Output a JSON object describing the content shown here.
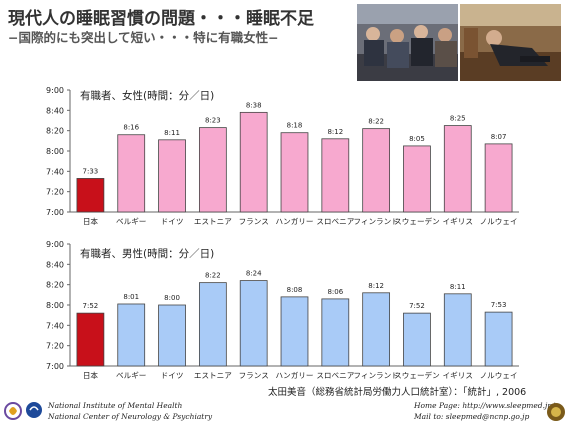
{
  "header": {
    "title": "現代人の睡眠習慣の問題・・・睡眠不足",
    "subtitle": "−国際的にも突出して短い・・・特に有職女性−"
  },
  "photos": [
    {
      "icon": "photo-sleeping-commuters-icon"
    },
    {
      "icon": "photo-sleeping-passenger-icon"
    }
  ],
  "chart_data": [
    {
      "type": "bar",
      "label": "有職者、女性(時間：分／日)",
      "categories": [
        "日本",
        "ベルギー",
        "ドイツ",
        "エストニア",
        "フランス",
        "ハンガリー",
        "スロベニア",
        "フィンランド",
        "スウェーデン",
        "イギリス",
        "ノルウェイ"
      ],
      "value_labels": [
        "7:33",
        "8:16",
        "8:11",
        "8:23",
        "8:38",
        "8:18",
        "8:12",
        "8:22",
        "8:05",
        "8:25",
        "8:07"
      ],
      "values_minutes": [
        453,
        496,
        491,
        503,
        518,
        498,
        492,
        502,
        485,
        505,
        487
      ],
      "y_ticks": [
        "9:00",
        "8:40",
        "8:20",
        "8:00",
        "7:40",
        "7:20",
        "7:00"
      ],
      "ylim_minutes": [
        420,
        540
      ],
      "highlight_color": "#c8101a",
      "bar_color": "#f7a9cf",
      "grid": false
    },
    {
      "type": "bar",
      "label": "有職者、男性(時間：分／日)",
      "categories": [
        "日本",
        "ベルギー",
        "ドイツ",
        "エストニア",
        "フランス",
        "ハンガリー",
        "スロベニア",
        "フィンランド",
        "スウェーデン",
        "イギリス",
        "ノルウェイ"
      ],
      "value_labels": [
        "7:52",
        "8:01",
        "8:00",
        "8:22",
        "8:24",
        "8:08",
        "8:06",
        "8:12",
        "7:52",
        "8:11",
        "7:53"
      ],
      "values_minutes": [
        472,
        481,
        480,
        502,
        504,
        488,
        486,
        492,
        472,
        491,
        473
      ],
      "y_ticks": [
        "9:00",
        "8:40",
        "8:20",
        "8:00",
        "7:40",
        "7:20",
        "7:00"
      ],
      "ylim_minutes": [
        420,
        540
      ],
      "highlight_color": "#c8101a",
      "bar_color": "#a9cbf7",
      "grid": false
    }
  ],
  "source": "太田美音（総務省統計局労働力人口統計室）：「統計」, 2006",
  "footer": {
    "org_line1": "National Institute of Mental Health",
    "org_line2": "National Center of Neurology & Psychiatry",
    "homepage": "Home Page:  http://www.sleepmed.jp/",
    "mail": "Mail to:      sleepmed@ncnp.go.jp"
  }
}
